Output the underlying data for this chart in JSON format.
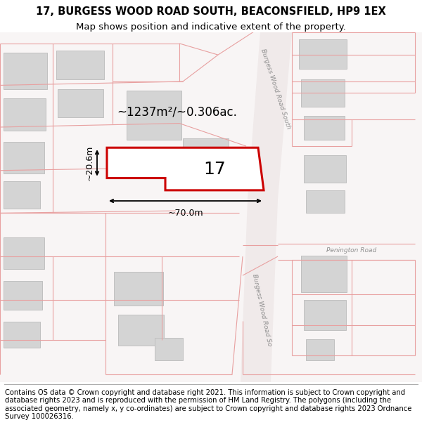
{
  "title_line1": "17, BURGESS WOOD ROAD SOUTH, BEACONSFIELD, HP9 1EX",
  "title_line2": "Map shows position and indicative extent of the property.",
  "footer_text": "Contains OS data © Crown copyright and database right 2021. This information is subject to Crown copyright and database rights 2023 and is reproduced with the permission of HM Land Registry. The polygons (including the associated geometry, namely x, y co-ordinates) are subject to Crown copyright and database rights 2023 Ordnance Survey 100026316.",
  "map_bg": "#f8f5f5",
  "plot_fill": "#ffffff",
  "plot_edge": "#cc0000",
  "building_fill": "#d4d4d4",
  "building_edge": "#c0c0c0",
  "road_line_color": "#e8a0a0",
  "dim_color": "#000000",
  "label_color": "#888888",
  "area_text": "~1237m²/~0.306ac.",
  "label_17": "17",
  "dim_width": "~70.0m",
  "dim_height": "~20.6m",
  "road_label_upper": "Burgess Wood Road South",
  "road_label_lower": "Burgess Wood Road So",
  "penington_label": "Penington Road",
  "title_fontsize": 10.5,
  "subtitle_fontsize": 9.5,
  "footer_fontsize": 7.2
}
